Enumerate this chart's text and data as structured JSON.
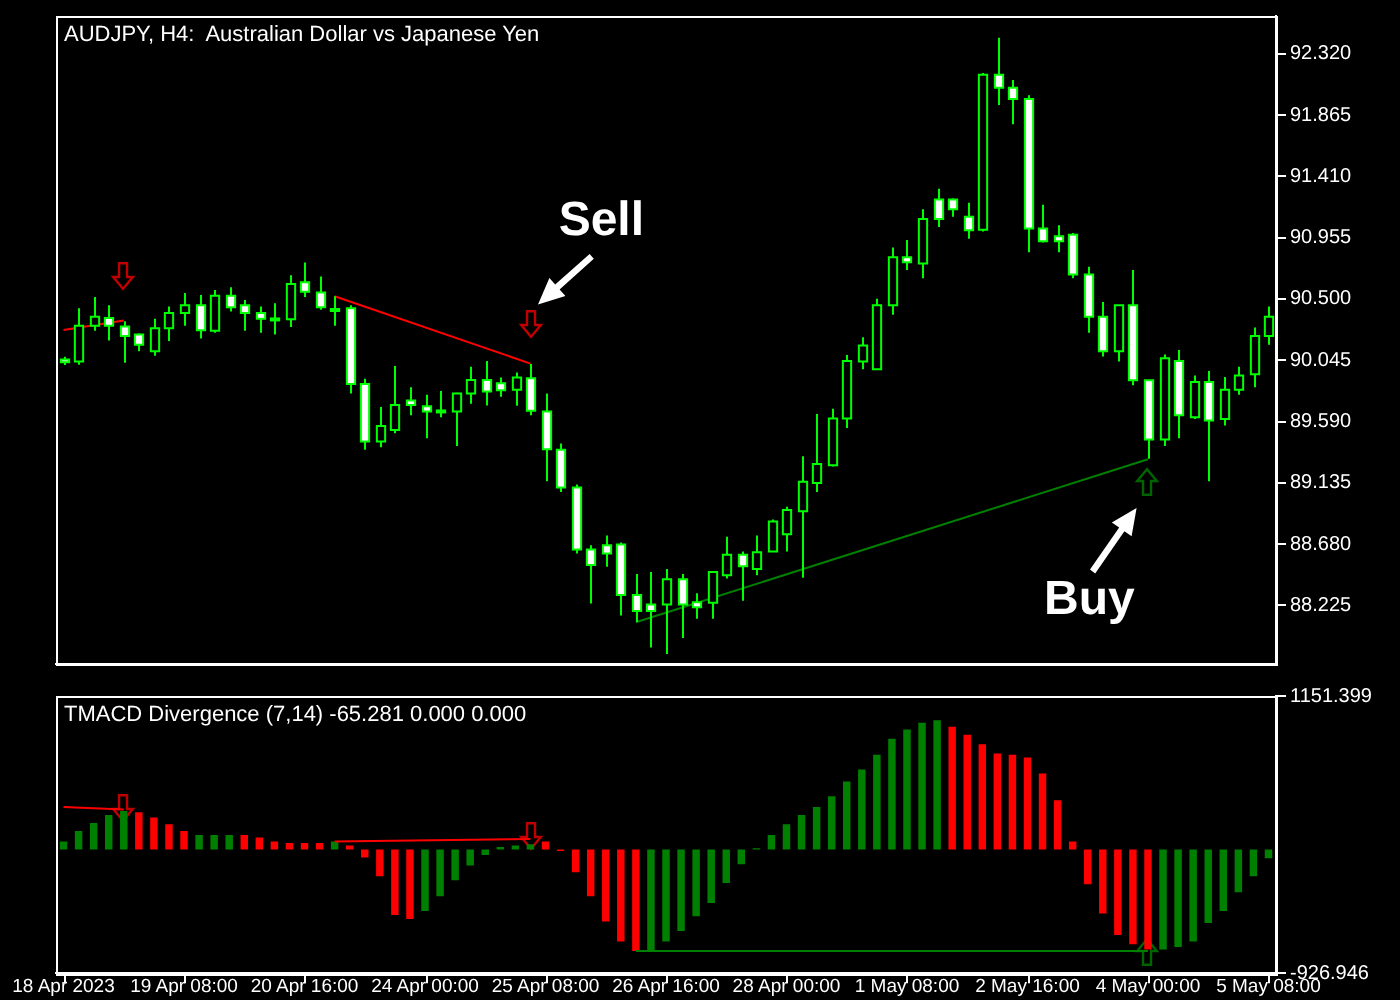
{
  "chart_data": [
    {
      "type": "candlestick",
      "title": "AUDJPY, H4:  Australian Dollar vs Japanese Yen",
      "color": "#00ff00",
      "categories": [
        null,
        null,
        null,
        null,
        null,
        null,
        null,
        null,
        null,
        null,
        null,
        null,
        null,
        null,
        null,
        null,
        null,
        null,
        null,
        null,
        null,
        null,
        null,
        null,
        null,
        null,
        null,
        null,
        null,
        null,
        null,
        null,
        null,
        null,
        null,
        null,
        null,
        null,
        null,
        null,
        null,
        null,
        null,
        null,
        null,
        null,
        null,
        null,
        null,
        null,
        null,
        null,
        null,
        null,
        null,
        null,
        null,
        null,
        null,
        null,
        null,
        null,
        null,
        null,
        null,
        null,
        null,
        null,
        null,
        null,
        null,
        null,
        null,
        null,
        null,
        null,
        null,
        null,
        null,
        null,
        null
      ],
      "ohlc": [
        [
          90.05,
          90.07,
          90.01,
          90.03
        ],
        [
          90.035,
          90.43,
          90.011,
          90.301
        ],
        [
          90.301,
          90.515,
          90.263,
          90.368
        ],
        [
          90.358,
          90.453,
          90.192,
          90.301
        ],
        [
          90.296,
          90.334,
          90.026,
          90.225
        ],
        [
          90.235,
          90.244,
          90.111,
          90.159
        ],
        [
          90.111,
          90.353,
          90.078,
          90.282
        ],
        [
          90.282,
          90.444,
          90.187,
          90.396
        ],
        [
          90.396,
          90.543,
          90.301,
          90.453
        ],
        [
          90.453,
          90.529,
          90.206,
          90.268
        ],
        [
          90.263,
          90.567,
          90.249,
          90.524
        ],
        [
          90.524,
          90.586,
          90.406,
          90.439
        ],
        [
          90.453,
          90.491,
          90.263,
          90.396
        ],
        [
          90.396,
          90.444,
          90.249,
          90.353
        ],
        [
          90.353,
          90.467,
          90.235,
          90.355
        ],
        [
          90.349,
          90.676,
          90.292,
          90.61
        ],
        [
          90.624,
          90.771,
          90.515,
          90.553
        ],
        [
          90.548,
          90.667,
          90.42,
          90.439
        ],
        [
          90.425,
          90.52,
          90.301,
          90.423
        ],
        [
          90.43,
          90.453,
          89.798,
          89.869
        ],
        [
          89.869,
          89.907,
          89.38,
          89.442
        ],
        [
          89.442,
          89.698,
          89.399,
          89.556
        ],
        [
          89.527,
          90.002,
          89.503,
          89.712
        ],
        [
          89.746,
          89.845,
          89.636,
          89.712
        ],
        [
          89.703,
          89.788,
          89.465,
          89.665
        ],
        [
          89.67,
          89.817,
          89.622,
          89.672
        ],
        [
          89.665,
          89.803,
          89.408,
          89.798
        ],
        [
          89.798,
          89.997,
          89.722,
          89.898
        ],
        [
          89.898,
          90.04,
          89.708,
          89.812
        ],
        [
          89.874,
          89.917,
          89.774,
          89.822
        ],
        [
          89.826,
          89.954,
          89.707,
          89.916
        ],
        [
          89.912,
          90.016,
          89.636,
          89.669
        ],
        [
          89.665,
          89.798,
          89.147,
          89.384
        ],
        [
          89.38,
          89.427,
          89.066,
          89.1
        ],
        [
          89.1,
          89.123,
          88.61,
          88.639
        ],
        [
          88.639,
          88.672,
          88.24,
          88.525
        ],
        [
          88.672,
          88.743,
          88.511,
          88.61
        ],
        [
          88.677,
          88.691,
          88.15,
          88.302
        ],
        [
          88.302,
          88.458,
          88.102,
          88.183
        ],
        [
          88.231,
          88.473,
          87.912,
          88.183
        ],
        [
          88.231,
          88.496,
          87.864,
          88.42
        ],
        [
          88.42,
          88.458,
          87.983,
          88.231
        ],
        [
          88.249,
          88.316,
          88.126,
          88.211
        ],
        [
          88.245,
          88.473,
          88.126,
          88.473
        ],
        [
          88.449,
          88.734,
          88.425,
          88.601
        ],
        [
          88.601,
          88.625,
          88.259,
          88.515
        ],
        [
          88.496,
          88.743,
          88.449,
          88.62
        ],
        [
          88.625,
          88.862,
          88.625,
          88.848
        ],
        [
          88.753,
          88.957,
          88.625,
          88.933
        ],
        [
          88.924,
          89.332,
          88.43,
          89.142
        ],
        [
          89.133,
          89.646,
          89.066,
          89.275
        ],
        [
          89.266,
          89.684,
          89.256,
          89.613
        ],
        [
          89.613,
          90.083,
          89.541,
          90.04
        ],
        [
          90.035,
          90.216,
          89.978,
          90.154
        ],
        [
          89.978,
          90.501,
          89.978,
          90.453
        ],
        [
          90.453,
          90.881,
          90.382,
          90.809
        ],
        [
          90.809,
          90.938,
          90.714,
          90.772
        ],
        [
          90.762,
          91.166,
          90.653,
          91.094
        ],
        [
          91.237,
          91.317,
          91.033,
          91.094
        ],
        [
          91.237,
          91.246,
          91.109,
          91.166
        ],
        [
          91.109,
          91.213,
          90.947,
          91.009
        ],
        [
          91.014,
          92.177,
          91.0,
          92.163
        ],
        [
          92.163,
          92.438,
          91.94,
          92.068
        ],
        [
          92.068,
          92.125,
          91.797,
          91.983
        ],
        [
          91.983,
          92.011,
          90.847,
          91.023
        ],
        [
          91.023,
          91.199,
          90.918,
          90.928
        ],
        [
          90.966,
          91.047,
          90.847,
          90.928
        ],
        [
          90.976,
          90.99,
          90.653,
          90.681
        ],
        [
          90.681,
          90.738,
          90.249,
          90.368
        ],
        [
          90.368,
          90.477,
          90.073,
          90.111
        ],
        [
          90.111,
          90.453,
          90.035,
          90.453
        ],
        [
          90.453,
          90.714,
          89.859,
          89.897
        ],
        [
          89.897,
          89.897,
          89.313,
          89.456
        ],
        [
          89.456,
          90.087,
          89.408,
          90.059
        ],
        [
          90.04,
          90.121,
          89.465,
          89.636
        ],
        [
          89.622,
          89.931,
          89.608,
          89.883
        ],
        [
          89.883,
          89.964,
          89.147,
          89.598
        ],
        [
          89.608,
          89.921,
          89.56,
          89.826
        ],
        [
          89.826,
          89.997,
          89.788,
          89.931
        ],
        [
          89.94,
          90.287,
          89.845,
          90.225
        ],
        [
          90.225,
          90.444,
          90.159,
          90.368
        ]
      ],
      "series": [
        {
          "type": "line",
          "color": "#ff0000",
          "values": [
            90.27,
            null,
            null,
            null,
            90.34,
            null,
            null,
            null,
            null,
            null,
            null,
            null,
            null,
            null,
            null,
            null,
            null,
            null,
            null,
            null,
            null,
            null,
            null,
            null,
            null,
            null,
            null,
            null,
            null,
            null,
            null,
            null,
            null,
            null,
            null,
            null,
            null,
            null,
            null,
            null,
            null,
            null,
            null,
            null,
            null,
            null,
            null,
            null,
            null,
            null,
            null,
            null,
            null,
            null,
            null,
            null,
            null,
            null,
            null,
            null,
            null,
            null,
            null,
            null,
            null,
            null,
            null,
            null,
            null,
            null,
            null,
            null,
            null,
            null,
            null,
            null,
            null,
            null,
            null,
            null,
            null
          ]
        },
        {
          "type": "line",
          "color": "#ff0000",
          "values": [
            null,
            null,
            null,
            null,
            null,
            null,
            null,
            null,
            null,
            null,
            null,
            null,
            null,
            null,
            null,
            null,
            null,
            null,
            90.52,
            null,
            null,
            null,
            null,
            null,
            null,
            null,
            null,
            null,
            null,
            null,
            null,
            90.02,
            null,
            null,
            null,
            null,
            null,
            null,
            null,
            null,
            null,
            null,
            null,
            null,
            null,
            null,
            null,
            null,
            null,
            null,
            null,
            null,
            null,
            null,
            null,
            null,
            null,
            null,
            null,
            null,
            null,
            null,
            null,
            null,
            null,
            null,
            null,
            null,
            null,
            null,
            null,
            null,
            null,
            null,
            null,
            null,
            null,
            null,
            null,
            null,
            null
          ]
        },
        {
          "type": "line",
          "color": "#008000",
          "values": [
            null,
            null,
            null,
            null,
            null,
            null,
            null,
            null,
            null,
            null,
            null,
            null,
            null,
            null,
            null,
            null,
            null,
            null,
            null,
            null,
            null,
            null,
            null,
            null,
            null,
            null,
            null,
            null,
            null,
            null,
            null,
            null,
            null,
            null,
            null,
            null,
            null,
            null,
            88.1,
            null,
            null,
            null,
            null,
            null,
            null,
            null,
            null,
            null,
            null,
            null,
            null,
            null,
            null,
            null,
            null,
            null,
            null,
            null,
            null,
            null,
            null,
            null,
            null,
            null,
            null,
            null,
            null,
            null,
            null,
            null,
            null,
            null,
            89.31,
            null,
            null,
            null,
            null,
            null,
            null,
            null,
            null
          ]
        }
      ],
      "ylim": [
        87.79,
        92.6
      ],
      "yticks": [
        {
          "value": 88.225,
          "label": "88.225"
        },
        {
          "value": 88.68,
          "label": "88.680"
        },
        {
          "value": 89.135,
          "label": "89.135"
        },
        {
          "value": 89.59,
          "label": "89.590"
        },
        {
          "value": 90.045,
          "label": "90.045"
        },
        {
          "value": 90.5,
          "label": "90.500"
        },
        {
          "value": 90.955,
          "label": "90.955"
        },
        {
          "value": 91.41,
          "label": "91.410"
        },
        {
          "value": 91.865,
          "label": "91.865"
        },
        {
          "value": 92.32,
          "label": "92.320"
        }
      ],
      "tick_labels": "y",
      "annotations": [
        "Sell",
        "Buy"
      ]
    },
    {
      "type": "bar",
      "title": "TMACD Divergence (7,14) -65.281 0.000 0.000",
      "categories": [
        "18 Apr 2023",
        null,
        null,
        null,
        null,
        null,
        null,
        null,
        "19 Apr 08:00",
        null,
        null,
        null,
        null,
        null,
        null,
        null,
        "20 Apr 16:00",
        null,
        null,
        null,
        null,
        null,
        null,
        null,
        "24 Apr 00:00",
        null,
        null,
        null,
        null,
        null,
        null,
        null,
        "25 Apr 08:00",
        null,
        null,
        null,
        null,
        null,
        null,
        null,
        "26 Apr 16:00",
        null,
        null,
        null,
        null,
        null,
        null,
        null,
        "28 Apr 00:00",
        null,
        null,
        null,
        null,
        null,
        null,
        null,
        "1 May 08:00",
        null,
        null,
        null,
        null,
        null,
        null,
        null,
        "2 May 16:00",
        null,
        null,
        null,
        null,
        null,
        null,
        null,
        "4 May 00:00",
        null,
        null,
        null,
        null,
        null,
        null,
        null,
        "5 May 08:00"
      ],
      "values": [
        60,
        140,
        200,
        260,
        290,
        280,
        240,
        190,
        140,
        110,
        110,
        110,
        110,
        90,
        60,
        50,
        50,
        50,
        60,
        30,
        -60,
        -200,
        -490,
        -520,
        -460,
        -350,
        -230,
        -120,
        -40,
        20,
        30,
        40,
        60,
        -10,
        -170,
        -350,
        -540,
        -690,
        -760,
        -760,
        -690,
        -610,
        -500,
        -400,
        -250,
        -110,
        10,
        110,
        190,
        260,
        320,
        400,
        510,
        600,
        710,
        830,
        900,
        950,
        970,
        920,
        860,
        790,
        720,
        710,
        690,
        570,
        370,
        60,
        -260,
        -480,
        -640,
        -710,
        -750,
        -750,
        -730,
        -690,
        -550,
        -460,
        -320,
        -200,
        -65
      ],
      "colors": [
        "#008000",
        "#008000",
        "#008000",
        "#008000",
        "#008000",
        "#ff0000",
        "#ff0000",
        "#ff0000",
        "#ff0000",
        "#008000",
        "#008000",
        "#008000",
        "#ff0000",
        "#ff0000",
        "#ff0000",
        "#ff0000",
        "#ff0000",
        "#ff0000",
        "#008000",
        "#ff0000",
        "#ff0000",
        "#ff0000",
        "#ff0000",
        "#ff0000",
        "#008000",
        "#008000",
        "#008000",
        "#008000",
        "#008000",
        "#008000",
        "#008000",
        "#008000",
        "#ff0000",
        "#ff0000",
        "#ff0000",
        "#ff0000",
        "#ff0000",
        "#ff0000",
        "#ff0000",
        "#008000",
        "#008000",
        "#008000",
        "#008000",
        "#008000",
        "#008000",
        "#008000",
        "#008000",
        "#008000",
        "#008000",
        "#008000",
        "#008000",
        "#008000",
        "#008000",
        "#008000",
        "#008000",
        "#008000",
        "#008000",
        "#008000",
        "#008000",
        "#ff0000",
        "#ff0000",
        "#ff0000",
        "#ff0000",
        "#ff0000",
        "#ff0000",
        "#ff0000",
        "#ff0000",
        "#ff0000",
        "#ff0000",
        "#ff0000",
        "#ff0000",
        "#ff0000",
        "#ff0000",
        "#008000",
        "#008000",
        "#008000",
        "#008000",
        "#008000",
        "#008000",
        "#008000",
        "#008000"
      ],
      "series": [
        {
          "type": "line",
          "color": "#ff0000",
          "values": [
            320,
            null,
            null,
            null,
            300,
            null,
            null,
            null,
            null,
            null,
            null,
            null,
            null,
            null,
            null,
            null,
            null,
            null,
            null,
            null,
            null,
            null,
            null,
            null,
            null,
            null,
            null,
            null,
            null,
            null,
            null,
            null,
            null,
            null,
            null,
            null,
            null,
            null,
            null,
            null,
            null,
            null,
            null,
            null,
            null,
            null,
            null,
            null,
            null,
            null,
            null,
            null,
            null,
            null,
            null,
            null,
            null,
            null,
            null,
            null,
            null,
            null,
            null,
            null,
            null,
            null,
            null,
            null,
            null,
            null,
            null,
            null,
            null,
            null,
            null,
            null,
            null,
            null,
            null,
            null,
            null
          ]
        },
        {
          "type": "line",
          "color": "#ff0000",
          "values": [
            null,
            null,
            null,
            null,
            null,
            null,
            null,
            null,
            null,
            null,
            null,
            null,
            null,
            null,
            null,
            null,
            null,
            null,
            60,
            null,
            null,
            null,
            null,
            null,
            null,
            null,
            null,
            null,
            null,
            null,
            null,
            80,
            null,
            null,
            null,
            null,
            null,
            null,
            null,
            null,
            null,
            null,
            null,
            null,
            null,
            null,
            null,
            null,
            null,
            null,
            null,
            null,
            null,
            null,
            null,
            null,
            null,
            null,
            null,
            null,
            null,
            null,
            null,
            null,
            null,
            null,
            null,
            null,
            null,
            null,
            null,
            null,
            null,
            null,
            null,
            null,
            null,
            null,
            null,
            null,
            null
          ]
        },
        {
          "type": "line",
          "color": "#008000",
          "values": [
            null,
            null,
            null,
            null,
            null,
            null,
            null,
            null,
            null,
            null,
            null,
            null,
            null,
            null,
            null,
            null,
            null,
            null,
            null,
            null,
            null,
            null,
            null,
            null,
            null,
            null,
            null,
            null,
            null,
            null,
            null,
            null,
            null,
            null,
            null,
            null,
            null,
            null,
            -760,
            null,
            null,
            null,
            null,
            null,
            null,
            null,
            null,
            null,
            null,
            null,
            null,
            null,
            null,
            null,
            null,
            null,
            null,
            null,
            null,
            null,
            null,
            null,
            null,
            null,
            null,
            null,
            null,
            null,
            null,
            null,
            null,
            null,
            -760,
            null,
            null,
            null,
            null,
            null,
            null,
            null,
            null
          ]
        }
      ],
      "ylim": [
        -926.946,
        1151.399
      ],
      "yticks": [
        -926.946,
        1151.399
      ]
    }
  ]
}
